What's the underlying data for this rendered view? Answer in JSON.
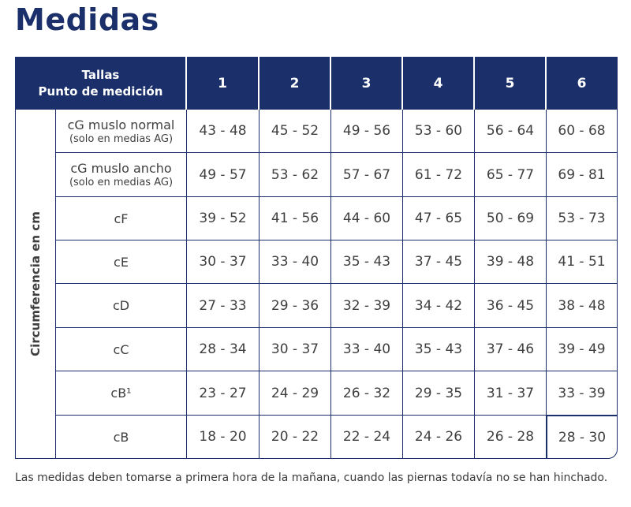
{
  "title": "Medidas",
  "header": {
    "label_line1": "Tallas",
    "label_line2": "Punto de medición",
    "sizes": [
      "1",
      "2",
      "3",
      "4",
      "5",
      "6"
    ]
  },
  "side_label": "Circumferencia en cm",
  "rows": [
    {
      "label": "cG muslo normal",
      "sublabel": "(solo en medias AG)",
      "values": [
        "43 - 48",
        "45 - 52",
        "49 - 56",
        "53 - 60",
        "56 - 64",
        "60 - 68"
      ]
    },
    {
      "label": "cG muslo ancho",
      "sublabel": "(solo en medias AG)",
      "values": [
        "49 - 57",
        "53 - 62",
        "57 - 67",
        "61 - 72",
        "65 - 77",
        "69 - 81"
      ]
    },
    {
      "label": "cF",
      "sublabel": "",
      "values": [
        "39 - 52",
        "41 - 56",
        "44 - 60",
        "47 - 65",
        "50 - 69",
        "53 - 73"
      ]
    },
    {
      "label": "cE",
      "sublabel": "",
      "values": [
        "30 - 37",
        "33 - 40",
        "35 - 43",
        "37 - 45",
        "39 - 48",
        "41 - 51"
      ]
    },
    {
      "label": "cD",
      "sublabel": "",
      "values": [
        "27 - 33",
        "29 - 36",
        "32 - 39",
        "34 - 42",
        "36 - 45",
        "38 - 48"
      ]
    },
    {
      "label": "cC",
      "sublabel": "",
      "values": [
        "28 - 34",
        "30 - 37",
        "33 - 40",
        "35 - 43",
        "37 - 46",
        "39 - 49"
      ]
    },
    {
      "label": "cB¹",
      "sublabel": "",
      "values": [
        "23 - 27",
        "24 - 29",
        "26 - 32",
        "29 - 35",
        "31 - 37",
        "33 - 39"
      ]
    },
    {
      "label": "cB",
      "sublabel": "",
      "values": [
        "18 - 20",
        "20 - 22",
        "22 - 24",
        "24 - 26",
        "26 - 28",
        "28 - 30"
      ]
    }
  ],
  "note": "Las medidas deben tomarse a primera hora de la mañana, cuando las piernas todavía no se han hinchado.",
  "colors": {
    "navy": "#1b2f6b",
    "text": "#3f3f3f"
  }
}
